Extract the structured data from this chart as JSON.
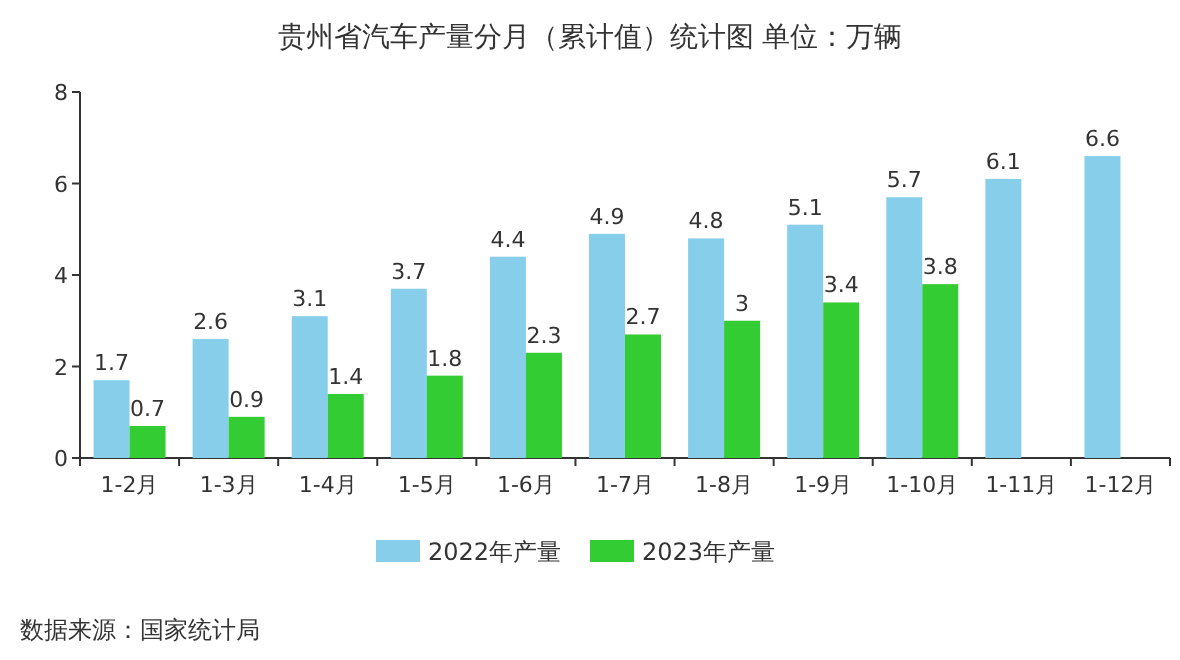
{
  "chart_data": {
    "type": "bar",
    "title": "贵州省汽车产量分月（累计值）统计图 单位：万辆",
    "categories": [
      "1-2月",
      "1-3月",
      "1-4月",
      "1-5月",
      "1-6月",
      "1-7月",
      "1-8月",
      "1-9月",
      "1-10月",
      "1-11月",
      "1-12月"
    ],
    "series": [
      {
        "name": "2022年产量",
        "color": "#87ceeb",
        "values": [
          1.7,
          2.6,
          3.1,
          3.7,
          4.4,
          4.9,
          4.8,
          5.1,
          5.7,
          6.1,
          6.6
        ]
      },
      {
        "name": "2023年产量",
        "color": "#33cc33",
        "values": [
          0.7,
          0.9,
          1.4,
          1.8,
          2.3,
          2.7,
          3,
          3.4,
          3.8,
          null,
          null
        ]
      }
    ],
    "ylim": [
      0,
      8
    ],
    "yticks": [
      0,
      2,
      4,
      6,
      8
    ],
    "data_labels": true,
    "legend": "bottom",
    "annotations": [
      "数据来源：国家统计局"
    ]
  }
}
